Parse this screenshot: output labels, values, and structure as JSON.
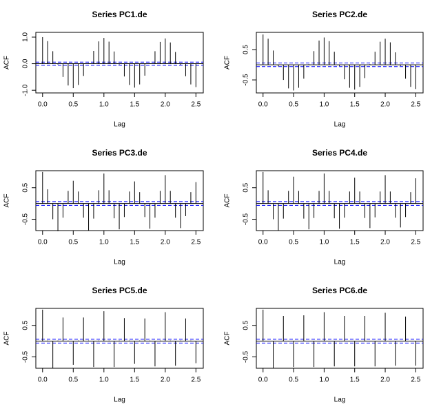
{
  "chart_data": [
    {
      "type": "acf",
      "title": "Series  PC1.de",
      "xlabel": "Lag",
      "ylabel": "ACF",
      "color": "#000000",
      "ci": 0.06,
      "ci_color": "#0000ff",
      "x": [
        0,
        0.083,
        0.167,
        0.25,
        0.333,
        0.417,
        0.5,
        0.583,
        0.667,
        0.75,
        0.833,
        0.917,
        1,
        1.083,
        1.167,
        1.25,
        1.333,
        1.417,
        1.5,
        1.583,
        1.667,
        1.75,
        1.833,
        1.917,
        2,
        2.083,
        2.167,
        2.25,
        2.333,
        2.417,
        2.5
      ],
      "values": [
        1.0,
        0.85,
        0.47,
        -0.03,
        -0.5,
        -0.82,
        -0.92,
        -0.8,
        -0.46,
        0.02,
        0.48,
        0.84,
        0.97,
        0.83,
        0.46,
        -0.03,
        -0.48,
        -0.8,
        -0.9,
        -0.78,
        -0.45,
        0.02,
        0.47,
        0.82,
        0.95,
        0.8,
        0.44,
        -0.04,
        -0.47,
        -0.78,
        -0.88
      ],
      "xlim": [
        -0.11,
        2.62
      ],
      "ylim": [
        -1.1,
        1.18
      ],
      "xticks": [
        {
          "value": 0,
          "label": "0.0"
        },
        {
          "value": 0.5,
          "label": "0.5"
        },
        {
          "value": 1,
          "label": "1.0"
        },
        {
          "value": 1.5,
          "label": "1.5"
        },
        {
          "value": 2,
          "label": "2.0"
        },
        {
          "value": 2.5,
          "label": "2.5"
        }
      ],
      "yticks": [
        {
          "value": -1,
          "label": "-1.0"
        },
        {
          "value": 0,
          "label": "0.0"
        },
        {
          "value": 1,
          "label": "1.0"
        }
      ]
    },
    {
      "type": "acf",
      "title": "Series  PC2.de",
      "xlabel": "Lag",
      "ylabel": "ACF",
      "color": "#000000",
      "ci": 0.06,
      "ci_color": "#0000ff",
      "x": [
        0,
        0.083,
        0.167,
        0.25,
        0.333,
        0.417,
        0.5,
        0.583,
        0.667,
        0.75,
        0.833,
        0.917,
        1,
        1.083,
        1.167,
        1.25,
        1.333,
        1.417,
        1.5,
        1.583,
        1.667,
        1.75,
        1.833,
        1.917,
        2,
        2.083,
        2.167,
        2.25,
        2.333,
        2.417,
        2.5
      ],
      "values": [
        1.0,
        0.86,
        0.47,
        -0.05,
        -0.5,
        -0.78,
        -0.85,
        -0.76,
        -0.46,
        0.02,
        0.45,
        0.8,
        0.9,
        0.78,
        0.43,
        -0.04,
        -0.48,
        -0.76,
        -0.82,
        -0.73,
        -0.44,
        0.02,
        0.43,
        0.76,
        0.86,
        0.74,
        0.41,
        -0.04,
        -0.46,
        -0.73,
        -0.8
      ],
      "xlim": [
        -0.11,
        2.62
      ],
      "ylim": [
        -0.93,
        1.07
      ],
      "xticks": [
        {
          "value": 0,
          "label": "0.0"
        },
        {
          "value": 0.5,
          "label": "0.5"
        },
        {
          "value": 1,
          "label": "1.0"
        },
        {
          "value": 1.5,
          "label": "1.5"
        },
        {
          "value": 2,
          "label": "2.0"
        },
        {
          "value": 2.5,
          "label": "2.5"
        }
      ],
      "yticks": [
        -0.5,
        0.5
      ]
    },
    {
      "type": "acf",
      "title": "Series  PC3.de",
      "xlabel": "Lag",
      "ylabel": "ACF",
      "color": "#000000",
      "ci": 0.06,
      "ci_color": "#0000ff",
      "x": [
        0,
        0.083,
        0.167,
        0.25,
        0.333,
        0.417,
        0.5,
        0.583,
        0.667,
        0.75,
        0.833,
        0.917,
        1,
        1.083,
        1.167,
        1.25,
        1.333,
        1.417,
        1.5,
        1.583,
        1.667,
        1.75,
        1.833,
        1.917,
        2,
        2.083,
        2.167,
        2.25,
        2.333,
        2.417,
        2.5
      ],
      "values": [
        1.0,
        0.45,
        -0.5,
        -0.88,
        -0.45,
        0.4,
        0.72,
        0.38,
        -0.45,
        -0.85,
        -0.48,
        0.42,
        0.95,
        0.42,
        -0.47,
        -0.82,
        -0.43,
        0.38,
        0.7,
        0.36,
        -0.43,
        -0.8,
        -0.45,
        0.4,
        0.9,
        0.4,
        -0.45,
        -0.78,
        -0.4,
        0.36,
        0.68
      ],
      "xlim": [
        -0.11,
        2.62
      ],
      "ylim": [
        -0.86,
        1.04
      ],
      "xticks": [
        {
          "value": 0,
          "label": "0.0"
        },
        {
          "value": 0.5,
          "label": "0.5"
        },
        {
          "value": 1,
          "label": "1.0"
        },
        {
          "value": 1.5,
          "label": "1.5"
        },
        {
          "value": 2,
          "label": "2.0"
        },
        {
          "value": 2.5,
          "label": "2.5"
        }
      ],
      "yticks": [
        -0.5,
        0.5
      ]
    },
    {
      "type": "acf",
      "title": "Series  PC4.de",
      "xlabel": "Lag",
      "ylabel": "ACF",
      "color": "#000000",
      "ci": 0.06,
      "ci_color": "#0000ff",
      "x": [
        0,
        0.083,
        0.167,
        0.25,
        0.333,
        0.417,
        0.5,
        0.583,
        0.667,
        0.75,
        0.833,
        0.917,
        1,
        1.083,
        1.167,
        1.25,
        1.333,
        1.417,
        1.5,
        1.583,
        1.667,
        1.75,
        1.833,
        1.917,
        2,
        2.083,
        2.167,
        2.25,
        2.333,
        2.417,
        2.5
      ],
      "values": [
        1.0,
        0.42,
        -0.5,
        -0.85,
        -0.48,
        0.4,
        0.85,
        0.4,
        -0.48,
        -0.82,
        -0.46,
        0.4,
        0.95,
        0.4,
        -0.47,
        -0.8,
        -0.45,
        0.38,
        0.82,
        0.38,
        -0.46,
        -0.78,
        -0.44,
        0.38,
        0.9,
        0.38,
        -0.45,
        -0.76,
        -0.43,
        0.36,
        0.8
      ],
      "xlim": [
        -0.11,
        2.62
      ],
      "ylim": [
        -0.86,
        1.04
      ],
      "xticks": [
        {
          "value": 0,
          "label": "0.0"
        },
        {
          "value": 0.5,
          "label": "0.5"
        },
        {
          "value": 1,
          "label": "1.0"
        },
        {
          "value": 1.5,
          "label": "1.5"
        },
        {
          "value": 2,
          "label": "2.0"
        },
        {
          "value": 2.5,
          "label": "2.5"
        }
      ],
      "yticks": [
        -0.5,
        0.5
      ]
    },
    {
      "type": "acf",
      "title": "Series  PC5.de",
      "xlabel": "Lag",
      "ylabel": "ACF",
      "color": "#000000",
      "ci": 0.06,
      "ci_color": "#0000ff",
      "x": [
        0,
        0.083,
        0.167,
        0.25,
        0.333,
        0.417,
        0.5,
        0.583,
        0.667,
        0.75,
        0.833,
        0.917,
        1,
        1.083,
        1.167,
        1.25,
        1.333,
        1.417,
        1.5,
        1.583,
        1.667,
        1.75,
        1.833,
        1.917,
        2,
        2.083,
        2.167,
        2.25,
        2.333,
        2.417,
        2.5
      ],
      "values": [
        1.0,
        0.02,
        -0.85,
        0.02,
        0.75,
        0.02,
        -0.75,
        0.02,
        0.75,
        0.02,
        -0.82,
        0.02,
        0.95,
        0.02,
        -0.82,
        0.02,
        0.73,
        0.02,
        -0.72,
        0.02,
        0.72,
        0.02,
        -0.8,
        0.02,
        0.92,
        0.02,
        -0.78,
        0.02,
        0.72,
        0.02,
        -0.7
      ],
      "xlim": [
        -0.11,
        2.62
      ],
      "ylim": [
        -0.86,
        1.04
      ],
      "xticks": [
        {
          "value": 0,
          "label": "0.0"
        },
        {
          "value": 0.5,
          "label": "0.5"
        },
        {
          "value": 1,
          "label": "1.0"
        },
        {
          "value": 1.5,
          "label": "1.5"
        },
        {
          "value": 2,
          "label": "2.0"
        },
        {
          "value": 2.5,
          "label": "2.5"
        }
      ],
      "yticks": [
        -0.5,
        0.5
      ]
    },
    {
      "type": "acf",
      "title": "Series  PC6.de",
      "xlabel": "Lag",
      "ylabel": "ACF",
      "color": "#000000",
      "ci": 0.06,
      "ci_color": "#0000ff",
      "x": [
        0,
        0.083,
        0.167,
        0.25,
        0.333,
        0.417,
        0.5,
        0.583,
        0.667,
        0.75,
        0.833,
        0.917,
        1,
        1.083,
        1.167,
        1.25,
        1.333,
        1.417,
        1.5,
        1.583,
        1.667,
        1.75,
        1.833,
        1.917,
        2,
        2.083,
        2.167,
        2.25,
        2.333,
        2.417,
        2.5
      ],
      "values": [
        1.0,
        0.01,
        -0.85,
        0.01,
        0.8,
        0.01,
        -0.82,
        0.01,
        0.82,
        0.01,
        -0.82,
        0.01,
        0.92,
        0.01,
        -0.8,
        0.01,
        0.8,
        0.01,
        -0.8,
        0.01,
        0.8,
        0.01,
        -0.8,
        0.01,
        0.9,
        0.01,
        -0.78,
        0.01,
        0.78,
        0.01,
        -0.78
      ],
      "xlim": [
        -0.11,
        2.62
      ],
      "ylim": [
        -0.86,
        1.04
      ],
      "xticks": [
        {
          "value": 0,
          "label": "0.0"
        },
        {
          "value": 0.5,
          "label": "0.5"
        },
        {
          "value": 1,
          "label": "1.0"
        },
        {
          "value": 1.5,
          "label": "1.5"
        },
        {
          "value": 2,
          "label": "2.0"
        },
        {
          "value": 2.5,
          "label": "2.5"
        }
      ],
      "yticks": [
        -0.5,
        0.5
      ]
    }
  ]
}
